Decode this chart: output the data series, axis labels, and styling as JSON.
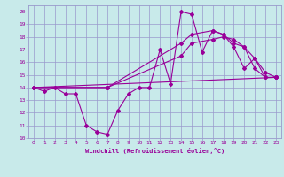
{
  "xlabel": "Windchill (Refroidissement éolien,°C)",
  "bg_color": "#c8eaea",
  "line_color": "#990099",
  "grid_color": "#9999cc",
  "xlim": [
    -0.5,
    23.5
  ],
  "ylim": [
    10,
    20.5
  ],
  "xticks": [
    0,
    1,
    2,
    3,
    4,
    5,
    6,
    7,
    8,
    9,
    10,
    11,
    12,
    13,
    14,
    15,
    16,
    17,
    18,
    19,
    20,
    21,
    22,
    23
  ],
  "yticks": [
    10,
    11,
    12,
    13,
    14,
    15,
    16,
    17,
    18,
    19,
    20
  ],
  "line1_x": [
    0,
    1,
    2,
    3,
    4,
    5,
    6,
    7,
    8,
    9,
    10,
    11,
    12,
    13,
    14,
    15,
    16,
    17,
    18,
    19,
    20,
    21,
    22,
    23
  ],
  "line1_y": [
    14.0,
    13.7,
    14.0,
    13.5,
    13.5,
    11.0,
    10.5,
    10.3,
    12.2,
    13.5,
    14.0,
    14.0,
    17.0,
    14.3,
    20.0,
    19.8,
    16.8,
    18.5,
    18.2,
    17.2,
    15.5,
    16.3,
    14.8,
    14.8
  ],
  "line2_x": [
    0,
    23
  ],
  "line2_y": [
    14.0,
    14.8
  ],
  "line3_x": [
    0,
    7,
    14,
    15,
    17,
    18,
    19,
    20,
    21,
    22,
    23
  ],
  "line3_y": [
    14.0,
    14.0,
    17.5,
    18.2,
    18.5,
    18.2,
    17.5,
    17.2,
    16.3,
    15.2,
    14.8
  ],
  "line4_x": [
    0,
    7,
    14,
    15,
    17,
    18,
    19,
    20,
    21,
    22,
    23
  ],
  "line4_y": [
    14.0,
    14.0,
    16.5,
    17.5,
    17.8,
    18.0,
    17.8,
    17.2,
    15.5,
    14.8,
    14.8
  ]
}
